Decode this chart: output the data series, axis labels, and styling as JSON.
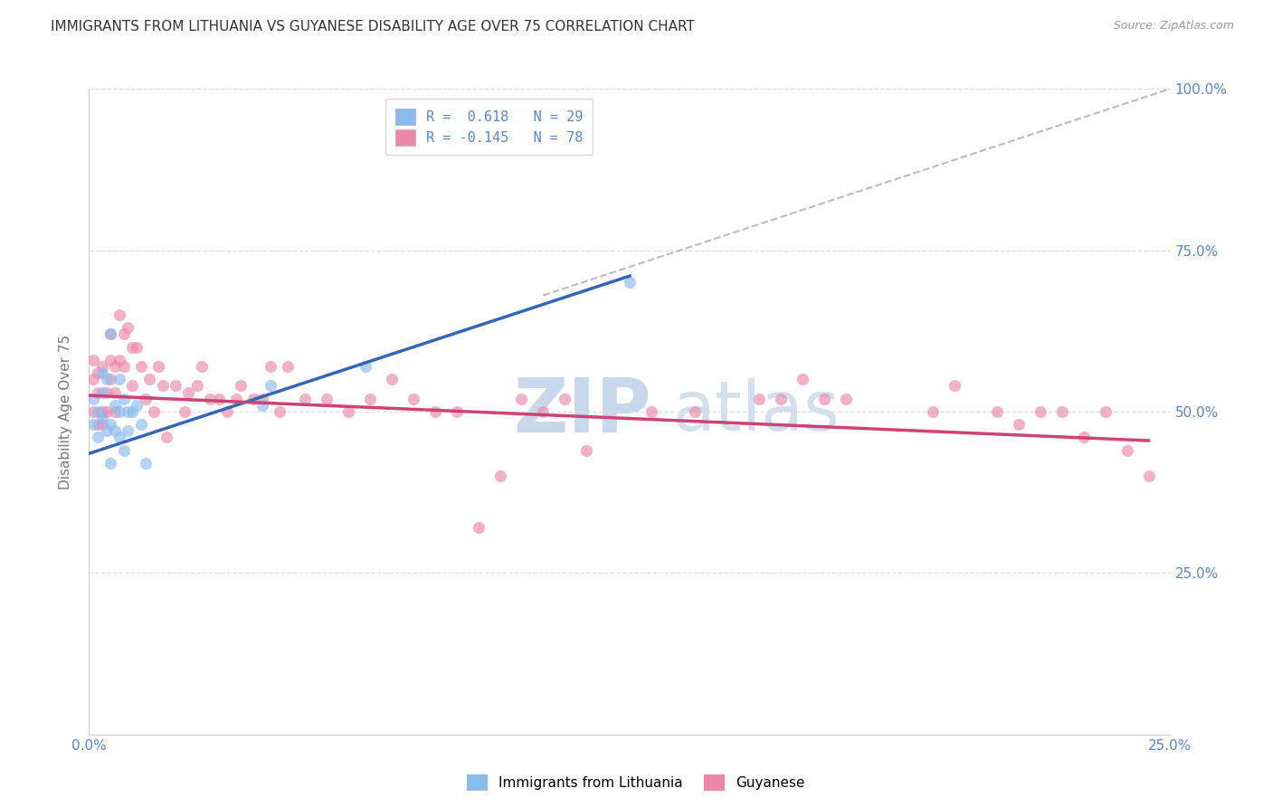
{
  "title": "IMMIGRANTS FROM LITHUANIA VS GUYANESE DISABILITY AGE OVER 75 CORRELATION CHART",
  "source": "Source: ZipAtlas.com",
  "ylabel": "Disability Age Over 75",
  "x_min": 0.0,
  "x_max": 0.25,
  "y_min": 0.0,
  "y_max": 1.0,
  "x_ticks": [
    0.0,
    0.05,
    0.1,
    0.15,
    0.2,
    0.25
  ],
  "y_ticks": [
    0.0,
    0.25,
    0.5,
    0.75,
    1.0
  ],
  "y_tick_labels_right": [
    "",
    "25.0%",
    "50.0%",
    "75.0%",
    "100.0%"
  ],
  "blue_line_color": "#3366bb",
  "pink_line_color": "#cc4477",
  "blue_dot_color": "#88bbee",
  "pink_dot_color": "#ee88aa",
  "dashed_line_color": "#bbbbbb",
  "watermark_zip_color": "#c8d8ec",
  "watermark_atlas_color": "#c0d4e8",
  "background_color": "#ffffff",
  "title_color": "#333333",
  "title_fontsize": 11,
  "axis_label_color": "#777777",
  "right_axis_color": "#5588cc",
  "grid_color": "#dddddd",
  "blue_scatter_x": [
    0.001,
    0.001,
    0.002,
    0.002,
    0.003,
    0.003,
    0.003,
    0.004,
    0.004,
    0.005,
    0.005,
    0.005,
    0.006,
    0.006,
    0.007,
    0.007,
    0.007,
    0.008,
    0.008,
    0.009,
    0.009,
    0.01,
    0.011,
    0.012,
    0.013,
    0.04,
    0.042,
    0.064,
    0.125
  ],
  "blue_scatter_y": [
    0.48,
    0.52,
    0.5,
    0.46,
    0.53,
    0.49,
    0.56,
    0.47,
    0.55,
    0.62,
    0.48,
    0.42,
    0.51,
    0.47,
    0.55,
    0.5,
    0.46,
    0.52,
    0.44,
    0.5,
    0.47,
    0.5,
    0.51,
    0.48,
    0.42,
    0.51,
    0.54,
    0.57,
    0.7
  ],
  "pink_scatter_x": [
    0.001,
    0.001,
    0.001,
    0.002,
    0.002,
    0.002,
    0.003,
    0.003,
    0.003,
    0.004,
    0.004,
    0.005,
    0.005,
    0.005,
    0.006,
    0.006,
    0.006,
    0.007,
    0.007,
    0.008,
    0.008,
    0.009,
    0.01,
    0.01,
    0.011,
    0.012,
    0.013,
    0.014,
    0.015,
    0.016,
    0.017,
    0.018,
    0.02,
    0.022,
    0.023,
    0.025,
    0.026,
    0.028,
    0.03,
    0.032,
    0.034,
    0.035,
    0.038,
    0.04,
    0.042,
    0.044,
    0.046,
    0.05,
    0.055,
    0.06,
    0.065,
    0.07,
    0.075,
    0.08,
    0.085,
    0.09,
    0.095,
    0.1,
    0.105,
    0.11,
    0.115,
    0.13,
    0.14,
    0.155,
    0.16,
    0.165,
    0.17,
    0.175,
    0.195,
    0.2,
    0.21,
    0.215,
    0.22,
    0.225,
    0.23,
    0.235,
    0.24,
    0.245
  ],
  "pink_scatter_y": [
    0.5,
    0.55,
    0.58,
    0.48,
    0.53,
    0.56,
    0.5,
    0.48,
    0.57,
    0.53,
    0.5,
    0.62,
    0.58,
    0.55,
    0.57,
    0.53,
    0.5,
    0.65,
    0.58,
    0.57,
    0.62,
    0.63,
    0.6,
    0.54,
    0.6,
    0.57,
    0.52,
    0.55,
    0.5,
    0.57,
    0.54,
    0.46,
    0.54,
    0.5,
    0.53,
    0.54,
    0.57,
    0.52,
    0.52,
    0.5,
    0.52,
    0.54,
    0.52,
    0.52,
    0.57,
    0.5,
    0.57,
    0.52,
    0.52,
    0.5,
    0.52,
    0.55,
    0.52,
    0.5,
    0.5,
    0.32,
    0.4,
    0.52,
    0.5,
    0.52,
    0.44,
    0.5,
    0.5,
    0.52,
    0.52,
    0.55,
    0.52,
    0.52,
    0.5,
    0.54,
    0.5,
    0.48,
    0.5,
    0.5,
    0.46,
    0.5,
    0.44,
    0.4
  ],
  "blue_line_x": [
    0.0,
    0.125
  ],
  "blue_line_y": [
    0.435,
    0.71
  ],
  "pink_line_x": [
    0.0,
    0.245
  ],
  "pink_line_y": [
    0.525,
    0.455
  ],
  "dash_line_x": [
    0.105,
    0.25
  ],
  "dash_line_y": [
    0.68,
    1.0
  ],
  "legend_blue_label_r": "R =",
  "legend_blue_r_val": " 0.618",
  "legend_blue_n": "N = 29",
  "legend_pink_label_r": "R =",
  "legend_pink_r_val": "-0.145",
  "legend_pink_n": "N = 78"
}
